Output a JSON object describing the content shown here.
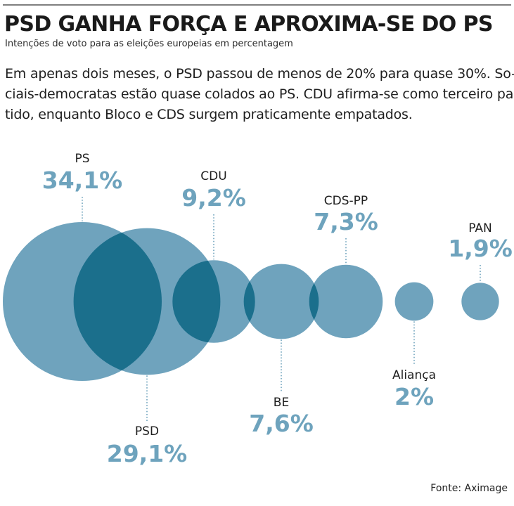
{
  "header": {
    "title": "PSD GANHA FORÇA E APROXIMA-SE DO PS",
    "subtitle": "Intenções de voto para as eleições europeias em percentagem",
    "intro_lines": [
      "Em apenas dois meses, o PSD passou de menos de 20% para quase 30%. So-",
      "ciais-democratas estão quase colados ao PS. CDU afirma-se como terceiro par-",
      "tido, enquanto Bloco e CDS surgem praticamente empatados."
    ]
  },
  "chart_data": {
    "type": "bubble",
    "unit": "%",
    "series": [
      {
        "party": "PS",
        "value": 34.1,
        "label": "34,1%"
      },
      {
        "party": "PSD",
        "value": 29.1,
        "label": "29,1%"
      },
      {
        "party": "CDU",
        "value": 9.2,
        "label": "9,2%"
      },
      {
        "party": "BE",
        "value": 7.6,
        "label": "7,6%"
      },
      {
        "party": "CDS-PP",
        "value": 7.3,
        "label": "7,3%"
      },
      {
        "party": "Aliança",
        "value": 2,
        "label": "2%"
      },
      {
        "party": "PAN",
        "value": 1.9,
        "label": "1,9%"
      }
    ]
  },
  "colors": {
    "bubble": "#6fa3bd",
    "overlap": "#1b6f8c",
    "value_text": "#6ea3bd",
    "leader": "#6fa3bd"
  },
  "footer": {
    "source": "Fonte: Aximage"
  }
}
